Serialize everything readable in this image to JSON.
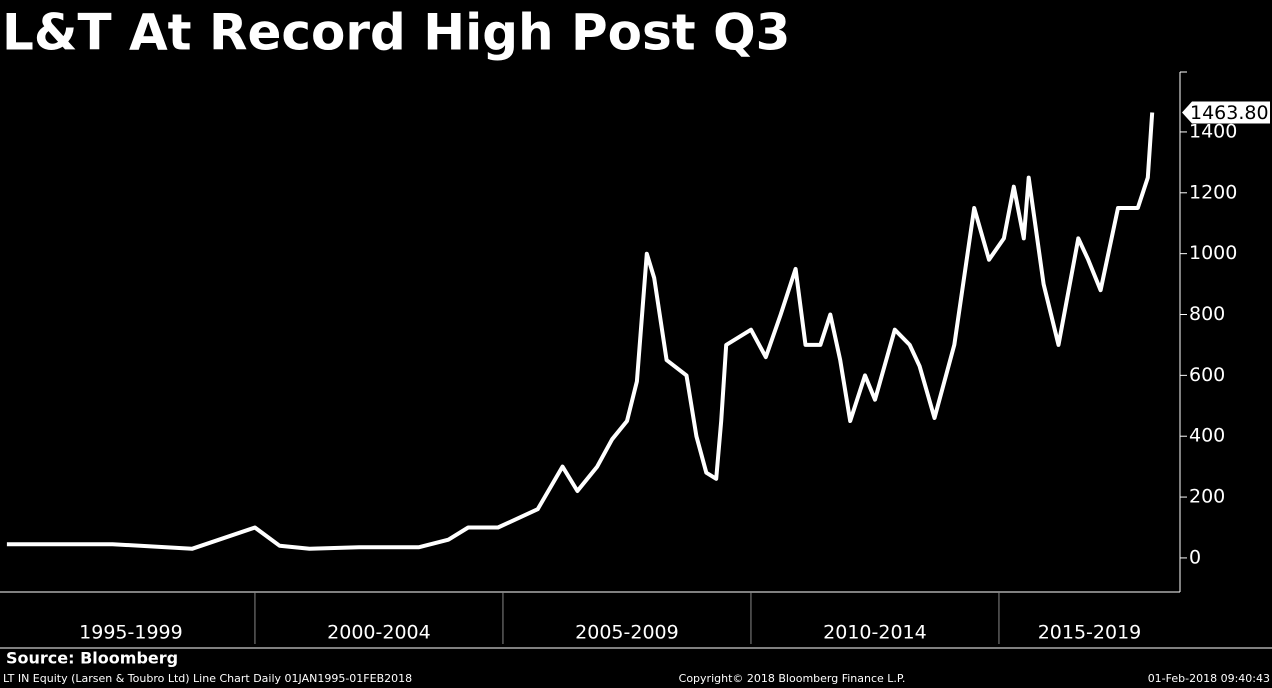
{
  "chart_data": {
    "type": "line",
    "title": "L&T At Record High Post Q3",
    "source": "Source: Bloomberg",
    "description": "LT IN Equity (Larsen & Toubro Ltd) Line Chart  Daily 01JAN1995-01FEB2018",
    "copyright": "Copyright© 2018 Bloomberg Finance L.P.",
    "timestamp": "01-Feb-2018 09:40:43",
    "periods": [
      {
        "label": "1995-1999",
        "start": 1995,
        "end": 2000
      },
      {
        "label": "2000-2004",
        "start": 2000,
        "end": 2005
      },
      {
        "label": "2005-2009",
        "start": 2005,
        "end": 2010
      },
      {
        "label": "2010-2014",
        "start": 2010,
        "end": 2015
      },
      {
        "label": "2015-2019",
        "start": 2015,
        "end": 2020
      }
    ],
    "xlim": [
      1994.86,
      2018.65
    ],
    "ylim": [
      -112,
      1597
    ],
    "yticks": [
      0,
      200,
      400,
      600,
      800,
      1000,
      1200,
      1400
    ],
    "last_value_label": "1463.80",
    "series": [
      {
        "color": "#ffffff",
        "x": [
          1995.0,
          1997.13,
          1998.73,
          2000.0,
          2000.5,
          2001.1,
          2002.1,
          2003.3,
          2003.9,
          2004.3,
          2004.9,
          2005.7,
          2006.2,
          2006.5,
          2006.9,
          2007.2,
          2007.5,
          2007.7,
          2007.9,
          2008.05,
          2008.3,
          2008.7,
          2008.9,
          2009.1,
          2009.3,
          2009.4,
          2009.5,
          2010.0,
          2010.3,
          2010.6,
          2010.9,
          2011.1,
          2011.4,
          2011.6,
          2011.8,
          2012.0,
          2012.3,
          2012.5,
          2012.9,
          2013.2,
          2013.4,
          2013.7,
          2014.1,
          2014.5,
          2014.8,
          2015.1,
          2015.3,
          2015.5,
          2015.6,
          2015.9,
          2016.2,
          2016.6,
          2016.8,
          2017.05,
          2017.4,
          2017.8,
          2018.0,
          2018.09
        ],
        "values": [
          45,
          45,
          30,
          100,
          40,
          30,
          35,
          35,
          60,
          100,
          100,
          160,
          300,
          220,
          300,
          390,
          450,
          580,
          1000,
          920,
          650,
          600,
          400,
          280,
          260,
          450,
          700,
          750,
          660,
          800,
          950,
          700,
          700,
          800,
          650,
          450,
          600,
          520,
          750,
          700,
          630,
          460,
          700,
          1150,
          980,
          1050,
          1220,
          1050,
          1250,
          900,
          700,
          1050,
          980,
          880,
          1150,
          1150,
          1250,
          1463.8
        ]
      }
    ]
  }
}
